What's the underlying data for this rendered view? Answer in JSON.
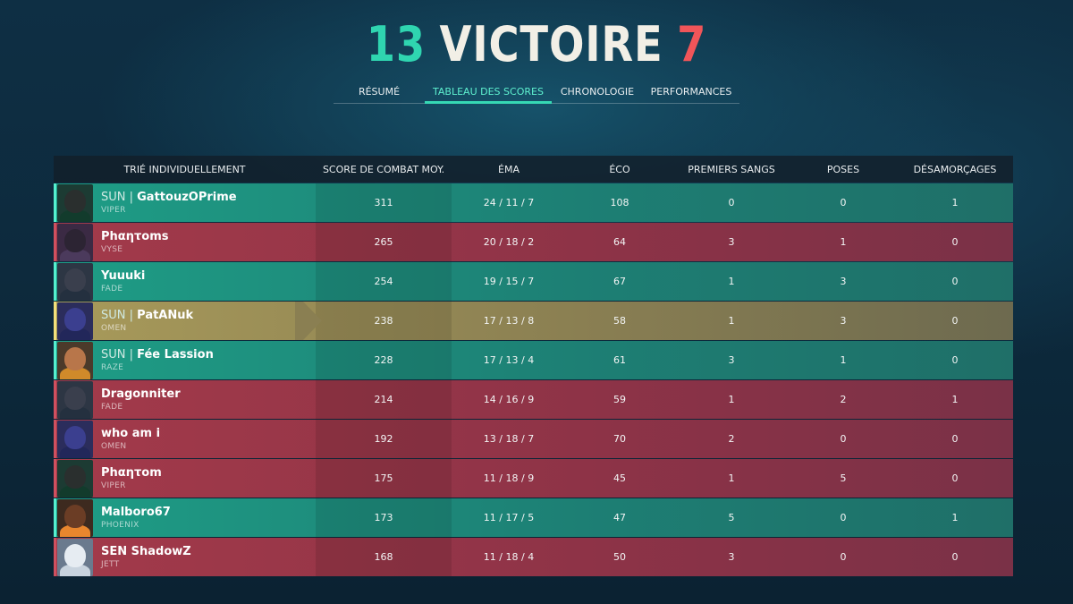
{
  "header": {
    "ally_score": "13",
    "result": "VICTOIRE",
    "enemy_score": "7"
  },
  "tabs": [
    {
      "label": "RÉSUMÉ",
      "active": false
    },
    {
      "label": "TABLEAU DES SCORES",
      "active": true
    },
    {
      "label": "CHRONOLOGIE",
      "active": false
    },
    {
      "label": "PERFORMANCES",
      "active": false
    }
  ],
  "columns": {
    "name": "TRIÉ INDIVIDUELLEMENT",
    "acs": "SCORE DE COMBAT MOY.",
    "kda": "ÉMA",
    "eco": "ÉCO",
    "first_bloods": "PREMIERS SANGS",
    "plants": "POSES",
    "defuses": "DÉSAMORÇAGES"
  },
  "colors": {
    "ally": "#1e9d86",
    "enemy": "#a33a4a",
    "self": "#a89a5a",
    "ally_score": "#2fd5b0",
    "enemy_score": "#f05559"
  },
  "players": [
    {
      "tag": "SUN |",
      "name": "GattouzOPrime",
      "agent": "VIPER",
      "team": "ally",
      "acs": "311",
      "kda": "24 / 11 / 7",
      "eco": "108",
      "first_bloods": "0",
      "plants": "0",
      "defuses": "1",
      "portrait": "viper-portrait"
    },
    {
      "tag": "",
      "name": "Phαητoms",
      "agent": "VYSE",
      "team": "enemy",
      "acs": "265",
      "kda": "20 / 18 / 2",
      "eco": "64",
      "first_bloods": "3",
      "plants": "1",
      "defuses": "0",
      "portrait": "vyse-portrait"
    },
    {
      "tag": "",
      "name": "Yuuuki",
      "agent": "FADE",
      "team": "ally",
      "acs": "254",
      "kda": "19 / 15 / 7",
      "eco": "67",
      "first_bloods": "1",
      "plants": "3",
      "defuses": "0",
      "portrait": "fade-portrait"
    },
    {
      "tag": "SUN |",
      "name": "PatANuk",
      "agent": "OMEN",
      "team": "self",
      "acs": "238",
      "kda": "17 / 13 / 8",
      "eco": "58",
      "first_bloods": "1",
      "plants": "3",
      "defuses": "0",
      "portrait": "omen-portrait"
    },
    {
      "tag": "SUN |",
      "name": "Fée Lassion",
      "agent": "RAZE",
      "team": "ally",
      "acs": "228",
      "kda": "17 / 13 / 4",
      "eco": "61",
      "first_bloods": "3",
      "plants": "1",
      "defuses": "0",
      "portrait": "raze-portrait"
    },
    {
      "tag": "",
      "name": "Dragonniter",
      "agent": "FADE",
      "team": "enemy",
      "acs": "214",
      "kda": "14 / 16 / 9",
      "eco": "59",
      "first_bloods": "1",
      "plants": "2",
      "defuses": "1",
      "portrait": "fade-portrait"
    },
    {
      "tag": "",
      "name": "who am i",
      "agent": "OMEN",
      "team": "enemy",
      "acs": "192",
      "kda": "13 / 18 / 7",
      "eco": "70",
      "first_bloods": "2",
      "plants": "0",
      "defuses": "0",
      "portrait": "omen-portrait"
    },
    {
      "tag": "",
      "name": "Phαητom",
      "agent": "VIPER",
      "team": "enemy",
      "acs": "175",
      "kda": "11 / 18 / 9",
      "eco": "45",
      "first_bloods": "1",
      "plants": "5",
      "defuses": "0",
      "portrait": "viper-portrait"
    },
    {
      "tag": "",
      "name": "Malboro67",
      "agent": "PHOENIX",
      "team": "ally",
      "acs": "173",
      "kda": "11 / 17 / 5",
      "eco": "47",
      "first_bloods": "5",
      "plants": "0",
      "defuses": "1",
      "portrait": "phoenix-portrait"
    },
    {
      "tag": "",
      "name": "SEN ShadowZ",
      "agent": "JETT",
      "team": "enemy",
      "acs": "168",
      "kda": "11 / 18 / 4",
      "eco": "50",
      "first_bloods": "3",
      "plants": "0",
      "defuses": "0",
      "portrait": "jett-portrait"
    }
  ]
}
